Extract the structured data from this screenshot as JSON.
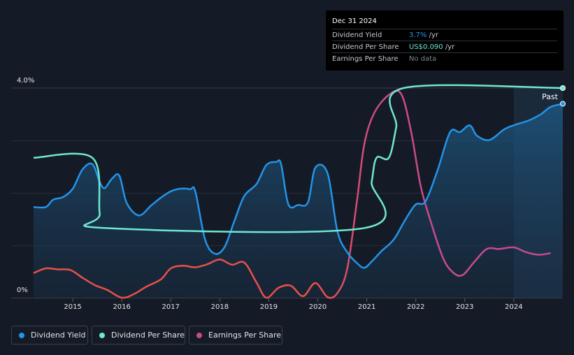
{
  "tooltip": {
    "date": "Dec 31 2024",
    "rows": [
      {
        "label": "Dividend Yield",
        "value": "3.7%",
        "unit": " /yr",
        "color": "#2394e7"
      },
      {
        "label": "Dividend Per Share",
        "value": "US$0.090",
        "unit": " /yr",
        "color": "#6ee8d2"
      },
      {
        "label": "Earnings Per Share",
        "value": "No data",
        "unit": "",
        "color": "#7e838c"
      }
    ]
  },
  "past_label": "Past",
  "legend": [
    {
      "label": "Dividend Yield",
      "color": "#2394e7"
    },
    {
      "label": "Dividend Per Share",
      "color": "#6ee8d2"
    },
    {
      "label": "Earnings Per Share",
      "color": "#c94a8a"
    }
  ],
  "chart_data": {
    "type": "line",
    "title": "",
    "xlabel": "",
    "ylabel": "",
    "x_ticks": [
      "2015",
      "2016",
      "2017",
      "2018",
      "2019",
      "2020",
      "2021",
      "2022",
      "2023",
      "2024"
    ],
    "y_tick_labels": [
      "4.0%",
      "0%"
    ],
    "ylim": [
      0,
      4.0
    ],
    "xlim": [
      2014.2,
      2025.0
    ],
    "forecast_region_start": 2024.0,
    "series": [
      {
        "name": "Dividend Yield",
        "unit": "%",
        "color": "#2394e7",
        "filled": true,
        "points": [
          [
            2014.2,
            1.73
          ],
          [
            2014.45,
            1.73
          ],
          [
            2014.6,
            1.87
          ],
          [
            2014.8,
            1.92
          ],
          [
            2015.0,
            2.08
          ],
          [
            2015.2,
            2.45
          ],
          [
            2015.4,
            2.55
          ],
          [
            2015.55,
            2.21
          ],
          [
            2015.65,
            2.09
          ],
          [
            2015.8,
            2.27
          ],
          [
            2015.95,
            2.33
          ],
          [
            2016.1,
            1.81
          ],
          [
            2016.35,
            1.57
          ],
          [
            2016.6,
            1.76
          ],
          [
            2016.8,
            1.91
          ],
          [
            2017.0,
            2.03
          ],
          [
            2017.2,
            2.08
          ],
          [
            2017.4,
            2.07
          ],
          [
            2017.5,
            2.03
          ],
          [
            2017.7,
            1.11
          ],
          [
            2017.9,
            0.84
          ],
          [
            2018.1,
            0.97
          ],
          [
            2018.3,
            1.47
          ],
          [
            2018.5,
            1.94
          ],
          [
            2018.75,
            2.17
          ],
          [
            2018.95,
            2.53
          ],
          [
            2019.15,
            2.59
          ],
          [
            2019.25,
            2.55
          ],
          [
            2019.4,
            1.78
          ],
          [
            2019.6,
            1.77
          ],
          [
            2019.8,
            1.82
          ],
          [
            2019.95,
            2.48
          ],
          [
            2020.2,
            2.37
          ],
          [
            2020.4,
            1.27
          ],
          [
            2020.6,
            0.87
          ],
          [
            2020.8,
            0.66
          ],
          [
            2020.95,
            0.57
          ],
          [
            2021.1,
            0.69
          ],
          [
            2021.3,
            0.89
          ],
          [
            2021.55,
            1.11
          ],
          [
            2021.8,
            1.51
          ],
          [
            2022.0,
            1.78
          ],
          [
            2022.2,
            1.84
          ],
          [
            2022.45,
            2.45
          ],
          [
            2022.7,
            3.16
          ],
          [
            2022.9,
            3.16
          ],
          [
            2023.1,
            3.29
          ],
          [
            2023.25,
            3.09
          ],
          [
            2023.5,
            3.01
          ],
          [
            2023.8,
            3.21
          ],
          [
            2024.0,
            3.29
          ],
          [
            2024.3,
            3.38
          ],
          [
            2024.55,
            3.5
          ],
          [
            2024.75,
            3.64
          ],
          [
            2025.0,
            3.7
          ]
        ]
      },
      {
        "name": "Dividend Per Share",
        "unit": "US$/yr",
        "color": "#6ee8d2",
        "points": [
          [
            2014.2,
            2.67
          ],
          [
            2015.4,
            2.67
          ],
          [
            2015.55,
            1.61
          ],
          [
            2015.65,
            1.33
          ],
          [
            2020.95,
            1.33
          ],
          [
            2021.1,
            2.21
          ],
          [
            2021.2,
            2.67
          ],
          [
            2021.45,
            2.67
          ],
          [
            2021.6,
            3.25
          ],
          [
            2021.75,
            4.0
          ],
          [
            2025.0,
            4.0
          ]
        ]
      },
      {
        "name": "Earnings Per Share",
        "unit": "US$",
        "color_start": "#e8504a",
        "color_end": "#c94a8a",
        "points": [
          [
            2014.2,
            0.47
          ],
          [
            2014.45,
            0.56
          ],
          [
            2014.7,
            0.54
          ],
          [
            2014.95,
            0.53
          ],
          [
            2015.2,
            0.38
          ],
          [
            2015.45,
            0.24
          ],
          [
            2015.7,
            0.15
          ],
          [
            2016.0,
            0.0
          ],
          [
            2016.25,
            0.07
          ],
          [
            2016.5,
            0.21
          ],
          [
            2016.8,
            0.35
          ],
          [
            2017.0,
            0.56
          ],
          [
            2017.25,
            0.61
          ],
          [
            2017.5,
            0.58
          ],
          [
            2017.75,
            0.64
          ],
          [
            2018.0,
            0.73
          ],
          [
            2018.25,
            0.63
          ],
          [
            2018.5,
            0.67
          ],
          [
            2018.75,
            0.29
          ],
          [
            2018.95,
            0.0
          ],
          [
            2019.2,
            0.19
          ],
          [
            2019.45,
            0.23
          ],
          [
            2019.7,
            0.03
          ],
          [
            2019.95,
            0.28
          ],
          [
            2020.2,
            0.01
          ],
          [
            2020.4,
            0.09
          ],
          [
            2020.6,
            0.55
          ],
          [
            2020.8,
            1.85
          ],
          [
            2020.95,
            2.93
          ],
          [
            2021.15,
            3.52
          ],
          [
            2021.45,
            3.87
          ],
          [
            2021.7,
            3.89
          ],
          [
            2021.9,
            3.19
          ],
          [
            2022.1,
            2.13
          ],
          [
            2022.3,
            1.47
          ],
          [
            2022.55,
            0.77
          ],
          [
            2022.75,
            0.49
          ],
          [
            2022.95,
            0.43
          ],
          [
            2023.2,
            0.69
          ],
          [
            2023.45,
            0.93
          ],
          [
            2023.7,
            0.93
          ],
          [
            2024.0,
            0.96
          ],
          [
            2024.25,
            0.87
          ],
          [
            2024.5,
            0.82
          ],
          [
            2024.75,
            0.85
          ]
        ]
      }
    ]
  }
}
